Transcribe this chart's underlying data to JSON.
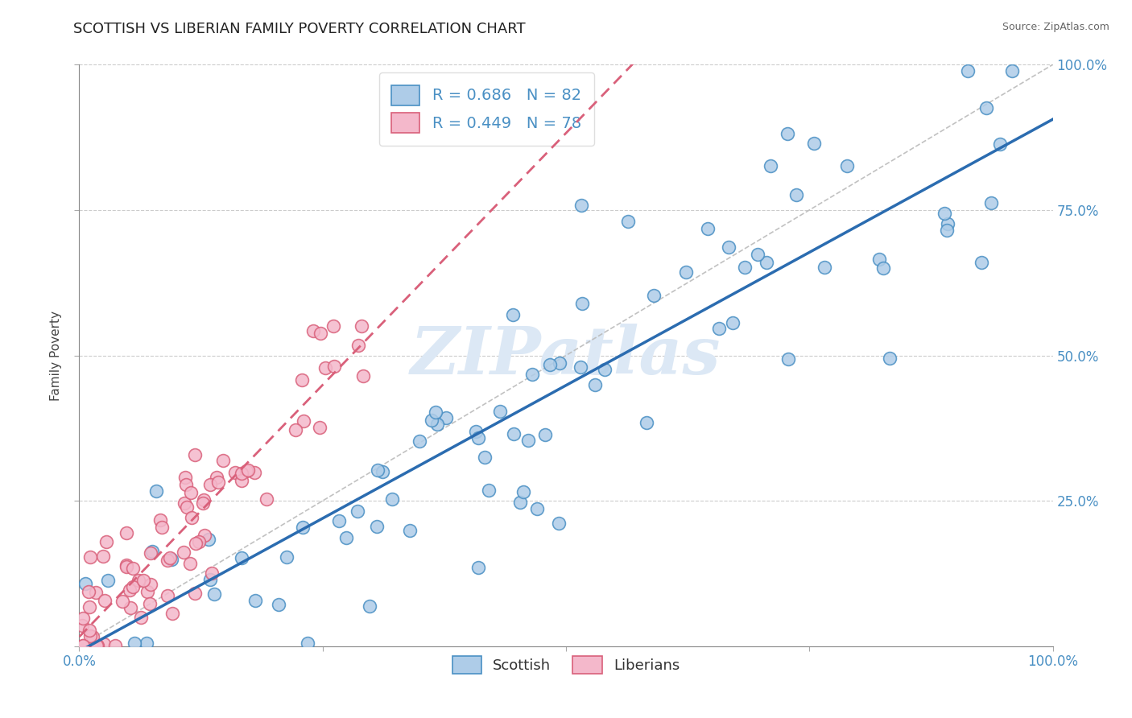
{
  "title": "SCOTTISH VS LIBERIAN FAMILY POVERTY CORRELATION CHART",
  "source": "Source: ZipAtlas.com",
  "ylabel": "Family Poverty",
  "scottish_R": 0.686,
  "scottish_N": 82,
  "liberian_R": 0.449,
  "liberian_N": 78,
  "scottish_color": "#aecce8",
  "scottish_edge_color": "#4a90c4",
  "scottish_line_color": "#2b6cb0",
  "liberian_color": "#f4b8cb",
  "liberian_edge_color": "#d9607a",
  "liberian_line_color": "#d9607a",
  "ref_line_color": "#bbbbbb",
  "watermark_color": "#dce8f5",
  "background_color": "#ffffff",
  "title_color": "#222222",
  "axis_color": "#4a90c4",
  "title_fontsize": 13,
  "tick_fontsize": 12,
  "ylabel_fontsize": 11
}
